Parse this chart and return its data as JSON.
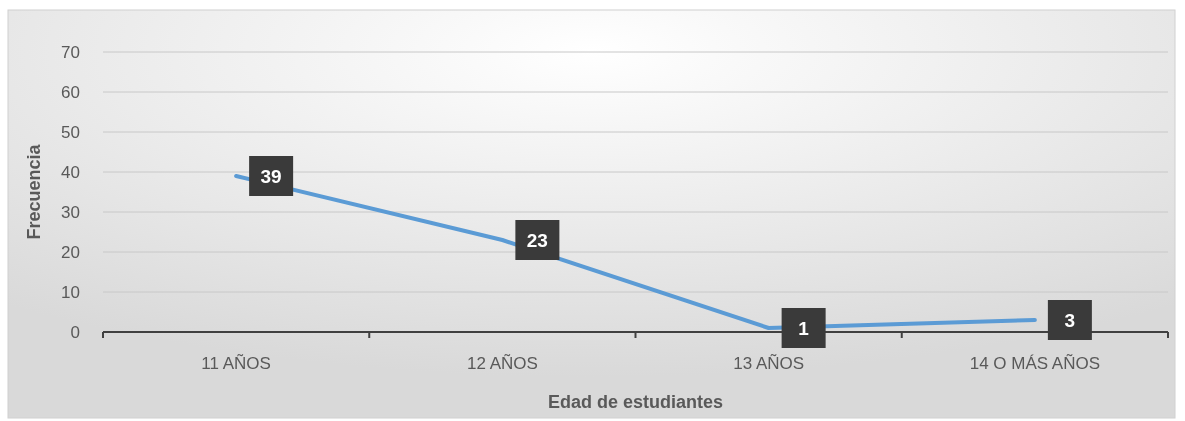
{
  "chart_data": {
    "type": "line",
    "xlabel": "Edad de estudiantes",
    "ylabel": "Frecuencia",
    "categories": [
      "11 AÑOS",
      "12 AÑOS",
      "13 AÑOS",
      "14 O MÁS AÑOS"
    ],
    "series": [
      {
        "color": "#5b9bd5",
        "values": [
          39,
          23,
          1,
          3
        ]
      }
    ],
    "ylim": [
      0,
      70
    ],
    "yticks": [
      0,
      10,
      20,
      30,
      40,
      50,
      60,
      70
    ],
    "grid": "y",
    "data_labels": true,
    "marker": "none",
    "line_style": "solid"
  }
}
